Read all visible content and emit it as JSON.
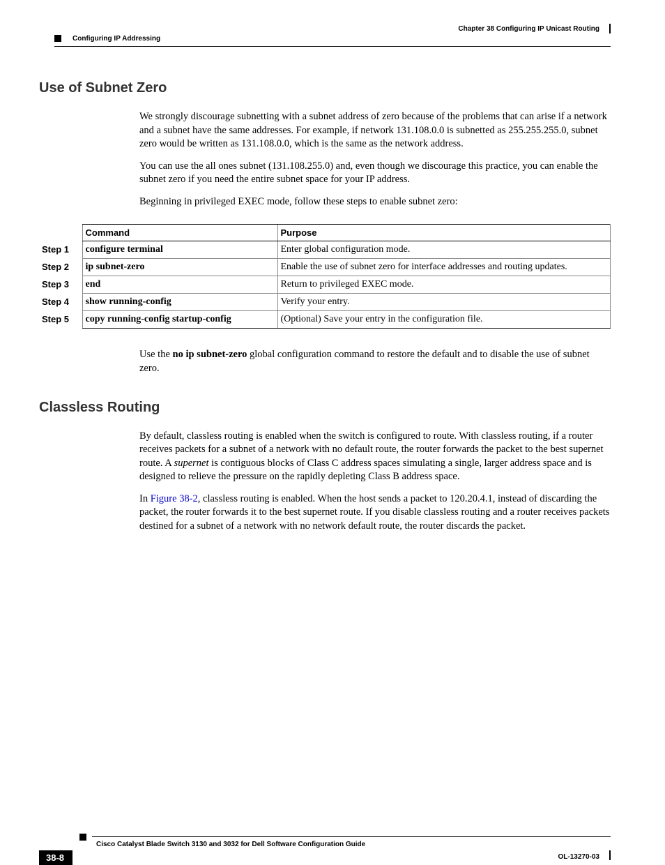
{
  "header": {
    "chapter": "Chapter 38    Configuring IP Unicast Routing",
    "section": "Configuring IP Addressing"
  },
  "section1": {
    "title": "Use of Subnet Zero",
    "p1": "We strongly discourage subnetting with a subnet address of zero because of the problems that can arise if a network and a subnet have the same addresses. For example, if network 131.108.0.0 is subnetted as 255.255.255.0, subnet zero would be written as 131.108.0.0, which is the same as the network address.",
    "p2": "You can use the all ones subnet (131.108.255.0) and, even though we discourage this practice, you can enable the subnet zero if you need the entire subnet space for your IP address.",
    "p3": "Beginning in privileged EXEC mode, follow these steps to enable subnet zero:"
  },
  "table": {
    "head_command": "Command",
    "head_purpose": "Purpose",
    "rows": [
      {
        "step": "Step 1",
        "cmd": "configure terminal",
        "purpose": "Enter global configuration mode."
      },
      {
        "step": "Step 2",
        "cmd": "ip subnet-zero",
        "purpose": "Enable the use of subnet zero for interface addresses and routing updates."
      },
      {
        "step": "Step 3",
        "cmd": "end",
        "purpose": "Return to privileged EXEC mode."
      },
      {
        "step": "Step 4",
        "cmd": "show running-config",
        "purpose": "Verify your entry."
      },
      {
        "step": "Step 5",
        "cmd": "copy running-config startup-config",
        "purpose": "(Optional) Save your entry in the configuration file."
      }
    ]
  },
  "after_table": {
    "pre": "Use the ",
    "bold": "no ip subnet-zero",
    "post": " global configuration command to restore the default and to disable the use of subnet zero."
  },
  "section2": {
    "title": "Classless Routing",
    "p1a": "By default, classless routing is enabled when the switch is configured to route. With classless routing, if a router receives packets for a subnet of a network with no default route, the router forwards the packet to the best supernet route. A ",
    "p1_italic": "supernet",
    "p1b": " is contiguous blocks of Class C address spaces simulating a single, larger address space and is designed to relieve the pressure on the rapidly depleting Class B address space.",
    "p2a": "In ",
    "p2_link": "Figure 38-2",
    "p2b": ", classless routing is enabled. When the host sends a packet to 120.20.4.1, instead of discarding the packet, the router forwards it to the best supernet route. If you disable classless routing and a router receives packets destined for a subnet of a network with no network default route, the router discards the packet."
  },
  "footer": {
    "title": "Cisco Catalyst Blade Switch 3130 and 3032 for Dell Software Configuration Guide",
    "page": "38-8",
    "docid": "OL-13270-03"
  }
}
